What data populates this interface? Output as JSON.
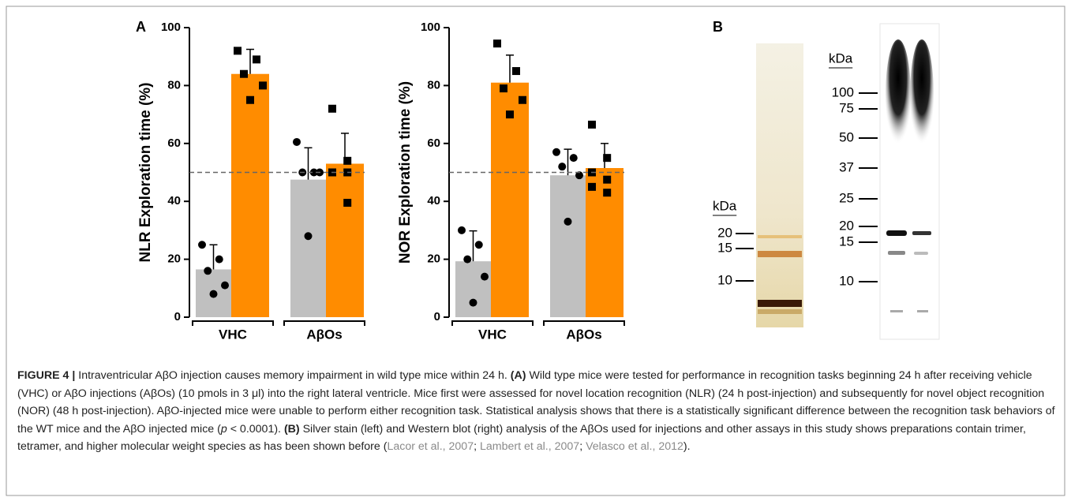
{
  "chart_data": [
    {
      "type": "bar",
      "panel_label": "A",
      "y_label": "NLR Exploration time  (%)",
      "categories": [
        "VHC",
        "AβOs"
      ],
      "ylim": [
        0,
        100
      ],
      "yticks": [
        0,
        20,
        40,
        60,
        80,
        100
      ],
      "refline": 50,
      "series": [
        {
          "color": "#c0c0c0",
          "marker": "circle",
          "values": [
            16.5,
            47.5
          ],
          "errors": [
            8.5,
            11
          ],
          "points": [
            [
              25,
              20,
              16,
              11,
              8
            ],
            [
              60.5,
              50,
              50,
              50,
              28
            ]
          ]
        },
        {
          "color": "#ff8c00",
          "marker": "square",
          "values": [
            84,
            53
          ],
          "errors": [
            8.5,
            10.5
          ],
          "points": [
            [
              92,
              89,
              84,
              80,
              75
            ],
            [
              72,
              54,
              50,
              50,
              50,
              39.5
            ]
          ]
        }
      ]
    },
    {
      "type": "bar",
      "y_label": "NOR Exploration time  (%)",
      "categories": [
        "VHC",
        "AβOs"
      ],
      "ylim": [
        0,
        100
      ],
      "yticks": [
        0,
        20,
        40,
        60,
        80,
        100
      ],
      "refline": 50,
      "series": [
        {
          "color": "#c0c0c0",
          "marker": "circle",
          "values": [
            19.3,
            49
          ],
          "errors": [
            10.5,
            9
          ],
          "points": [
            [
              30,
              25,
              20,
              14,
              5
            ],
            [
              57,
              55,
              52,
              49,
              33
            ]
          ]
        },
        {
          "color": "#ff8c00",
          "marker": "square",
          "values": [
            81,
            51.5
          ],
          "errors": [
            9.5,
            8.5
          ],
          "points": [
            [
              94.5,
              85,
              79,
              75,
              70
            ],
            [
              66.5,
              55,
              50,
              47.5,
              45,
              43
            ]
          ]
        }
      ]
    }
  ],
  "panel_b": {
    "label": "B",
    "silver_stain": {
      "unit": "kDa",
      "markers": [
        "20",
        "15",
        "10"
      ]
    },
    "western_blot": {
      "unit": "kDa",
      "markers": [
        "100",
        "75",
        "50",
        "37",
        "25",
        "20",
        "15",
        "10"
      ]
    }
  },
  "caption": [
    {
      "text": "FIGURE 4 |",
      "style": "bold"
    },
    {
      "text": " Intraventricular AβO injection causes memory impairment in wild type mice within 24 h. ",
      "style": "normal"
    },
    {
      "text": "(A)",
      "style": "bold"
    },
    {
      "text": " Wild type mice were tested for performance in recognition tasks beginning 24 h after receiving vehicle (VHC) or AβO injections (AβOs) (10 pmols in 3 μl) into the right lateral ventricle. Mice first were assessed for novel location recognition (NLR) (24 h post-injection) and subsequently for novel object recognition (NOR) (48 h post-injection). AβO-injected mice were unable to perform either recognition task. Statistical analysis shows that there is a statistically significant difference between the recognition task behaviors of the WT mice and the AβO injected mice (",
      "style": "normal"
    },
    {
      "text": "p",
      "style": "italic"
    },
    {
      "text": " < 0.0001). ",
      "style": "normal"
    },
    {
      "text": "(B)",
      "style": "bold"
    },
    {
      "text": " Silver stain (left) and Western blot (right) analysis of the AβOs used for injections and other assays in this study shows preparations contain trimer, tetramer, and higher molecular weight species as has been shown before (",
      "style": "normal"
    },
    {
      "text": "Lacor et al., 2007",
      "style": "cite"
    },
    {
      "text": "; ",
      "style": "normal"
    },
    {
      "text": "Lambert et al., 2007",
      "style": "cite"
    },
    {
      "text": "; ",
      "style": "normal"
    },
    {
      "text": "Velasco et al., 2012",
      "style": "cite"
    },
    {
      "text": ").",
      "style": "normal"
    }
  ]
}
